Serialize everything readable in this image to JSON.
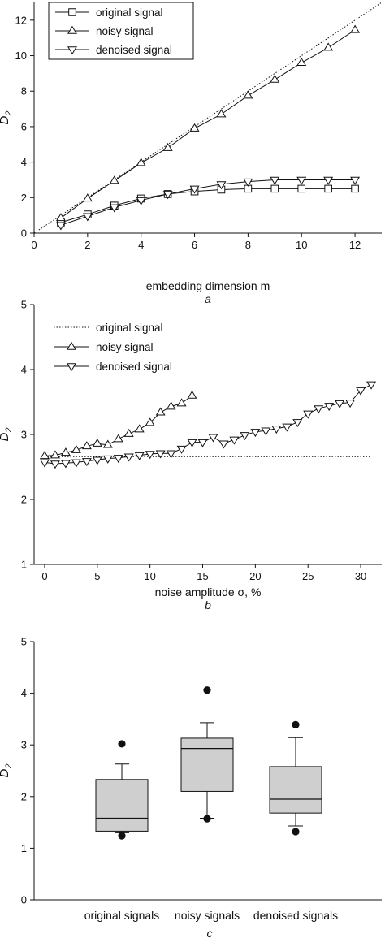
{
  "chart_data": [
    {
      "panel_label": "a",
      "type": "line",
      "xlabel": "embedding dimension m",
      "ylabel": "D2",
      "xlim": [
        0,
        13
      ],
      "ylim": [
        0,
        13
      ],
      "x_ticks": [
        0,
        2,
        4,
        6,
        8,
        10,
        12
      ],
      "y_ticks": [
        0,
        2,
        4,
        6,
        8,
        10,
        12
      ],
      "legend": "top-left",
      "grid": false,
      "series": [
        {
          "name": "original signal",
          "marker": "square",
          "x": [
            1,
            2,
            3,
            4,
            5,
            6,
            7,
            8,
            9,
            10,
            11,
            12
          ],
          "y": [
            0.6,
            1.05,
            1.55,
            1.95,
            2.2,
            2.35,
            2.45,
            2.5,
            2.5,
            2.5,
            2.5,
            2.5
          ]
        },
        {
          "name": "noisy signal",
          "marker": "triangle-up",
          "x": [
            1,
            2,
            3,
            4,
            5,
            6,
            7,
            8,
            9,
            10,
            11,
            12
          ],
          "y": [
            0.85,
            1.95,
            2.95,
            3.95,
            4.8,
            5.9,
            6.7,
            7.75,
            8.65,
            9.6,
            10.45,
            11.45
          ]
        },
        {
          "name": "denoised signal",
          "marker": "triangle-down",
          "x": [
            1,
            2,
            3,
            4,
            5,
            6,
            7,
            8,
            9,
            10,
            11,
            12
          ],
          "y": [
            0.45,
            0.95,
            1.45,
            1.85,
            2.2,
            2.5,
            2.75,
            2.9,
            3.0,
            3.0,
            3.0,
            3.0
          ]
        }
      ],
      "reference_line": {
        "style": "dotted",
        "x": [
          0,
          13
        ],
        "y": [
          0,
          13
        ]
      }
    },
    {
      "panel_label": "b",
      "type": "line",
      "xlabel": "noise amplitude σ, %",
      "ylabel": "D2",
      "xlim": [
        -1,
        32
      ],
      "ylim": [
        1,
        5
      ],
      "x_ticks": [
        0,
        5,
        10,
        15,
        20,
        25,
        30
      ],
      "y_ticks": [
        1,
        2,
        3,
        4,
        5
      ],
      "legend": "top-left",
      "grid": false,
      "series": [
        {
          "name": "original signal",
          "style": "dotted",
          "x": [
            0,
            31
          ],
          "y": [
            2.66,
            2.66
          ]
        },
        {
          "name": "noisy signal",
          "marker": "triangle-up",
          "x": [
            0,
            1,
            2,
            3,
            4,
            5,
            6,
            7,
            8,
            9,
            10,
            11,
            12,
            13,
            14
          ],
          "y": [
            2.67,
            2.68,
            2.72,
            2.76,
            2.82,
            2.86,
            2.84,
            2.93,
            3.01,
            3.08,
            3.18,
            3.34,
            3.43,
            3.48,
            3.6
          ]
        },
        {
          "name": "denoised signal",
          "marker": "triangle-down",
          "x": [
            0,
            1,
            2,
            3,
            4,
            5,
            6,
            7,
            8,
            9,
            10,
            11,
            12,
            13,
            14,
            15,
            16,
            17,
            18,
            19,
            20,
            21,
            22,
            23,
            24,
            25,
            26,
            27,
            28,
            29,
            30,
            31
          ],
          "y": [
            2.57,
            2.55,
            2.56,
            2.57,
            2.59,
            2.61,
            2.63,
            2.64,
            2.66,
            2.68,
            2.7,
            2.71,
            2.71,
            2.78,
            2.88,
            2.88,
            2.96,
            2.86,
            2.92,
            2.99,
            3.04,
            3.06,
            3.09,
            3.12,
            3.19,
            3.32,
            3.4,
            3.44,
            3.48,
            3.49,
            3.68,
            3.77
          ]
        }
      ]
    },
    {
      "panel_label": "c",
      "type": "box",
      "ylabel": "D2",
      "ylim": [
        0,
        5
      ],
      "y_ticks": [
        0,
        1,
        2,
        3,
        4,
        5
      ],
      "categories": [
        "original signals",
        "noisy signals",
        "denoised signals"
      ],
      "boxes": [
        {
          "whisker_low": 1.3,
          "q1": 1.33,
          "median": 1.58,
          "q3": 2.33,
          "whisker_high": 2.63,
          "outliers": [
            1.24,
            3.02
          ]
        },
        {
          "whisker_low": 1.58,
          "q1": 2.1,
          "median": 2.93,
          "q3": 3.13,
          "whisker_high": 3.43,
          "outliers": [
            1.57,
            4.06
          ]
        },
        {
          "whisker_low": 1.43,
          "q1": 1.68,
          "median": 1.95,
          "q3": 2.58,
          "whisker_high": 3.14,
          "outliers": [
            1.32,
            3.39
          ]
        }
      ]
    }
  ]
}
